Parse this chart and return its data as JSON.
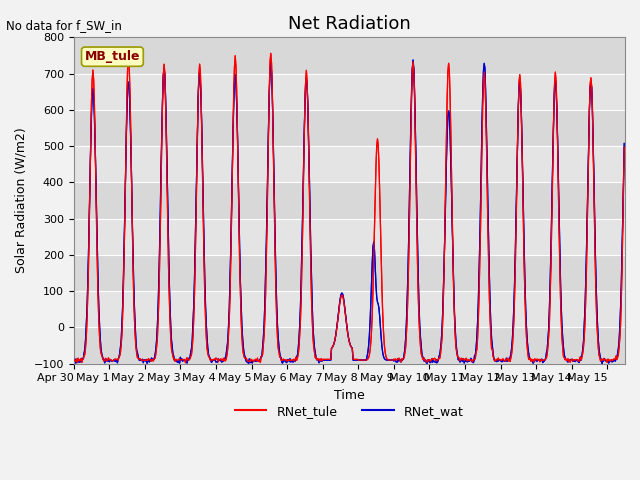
{
  "title": "Net Radiation",
  "ylabel": "Solar Radiation (W/m2)",
  "xlabel": "Time",
  "ylim": [
    -100,
    800
  ],
  "no_data_text": "No data for f_SW_in",
  "annotation_text": "MB_tule",
  "legend_entries": [
    "RNet_tule",
    "RNet_wat"
  ],
  "color_tule": "#FF0000",
  "color_wat": "#0000CC",
  "background_color": "#E0E0E0",
  "grid_color": "#FFFFFF",
  "title_fontsize": 13,
  "label_fontsize": 9,
  "tick_fontsize": 8,
  "xtick_labels": [
    "Apr 30",
    "May 1",
    "May 2",
    "May 3",
    "May 4",
    "May 5",
    "May 6",
    "May 7",
    "May 8",
    "May 9",
    "May 10",
    "May 11",
    "May 12",
    "May 13",
    "May 14",
    "May 15"
  ]
}
